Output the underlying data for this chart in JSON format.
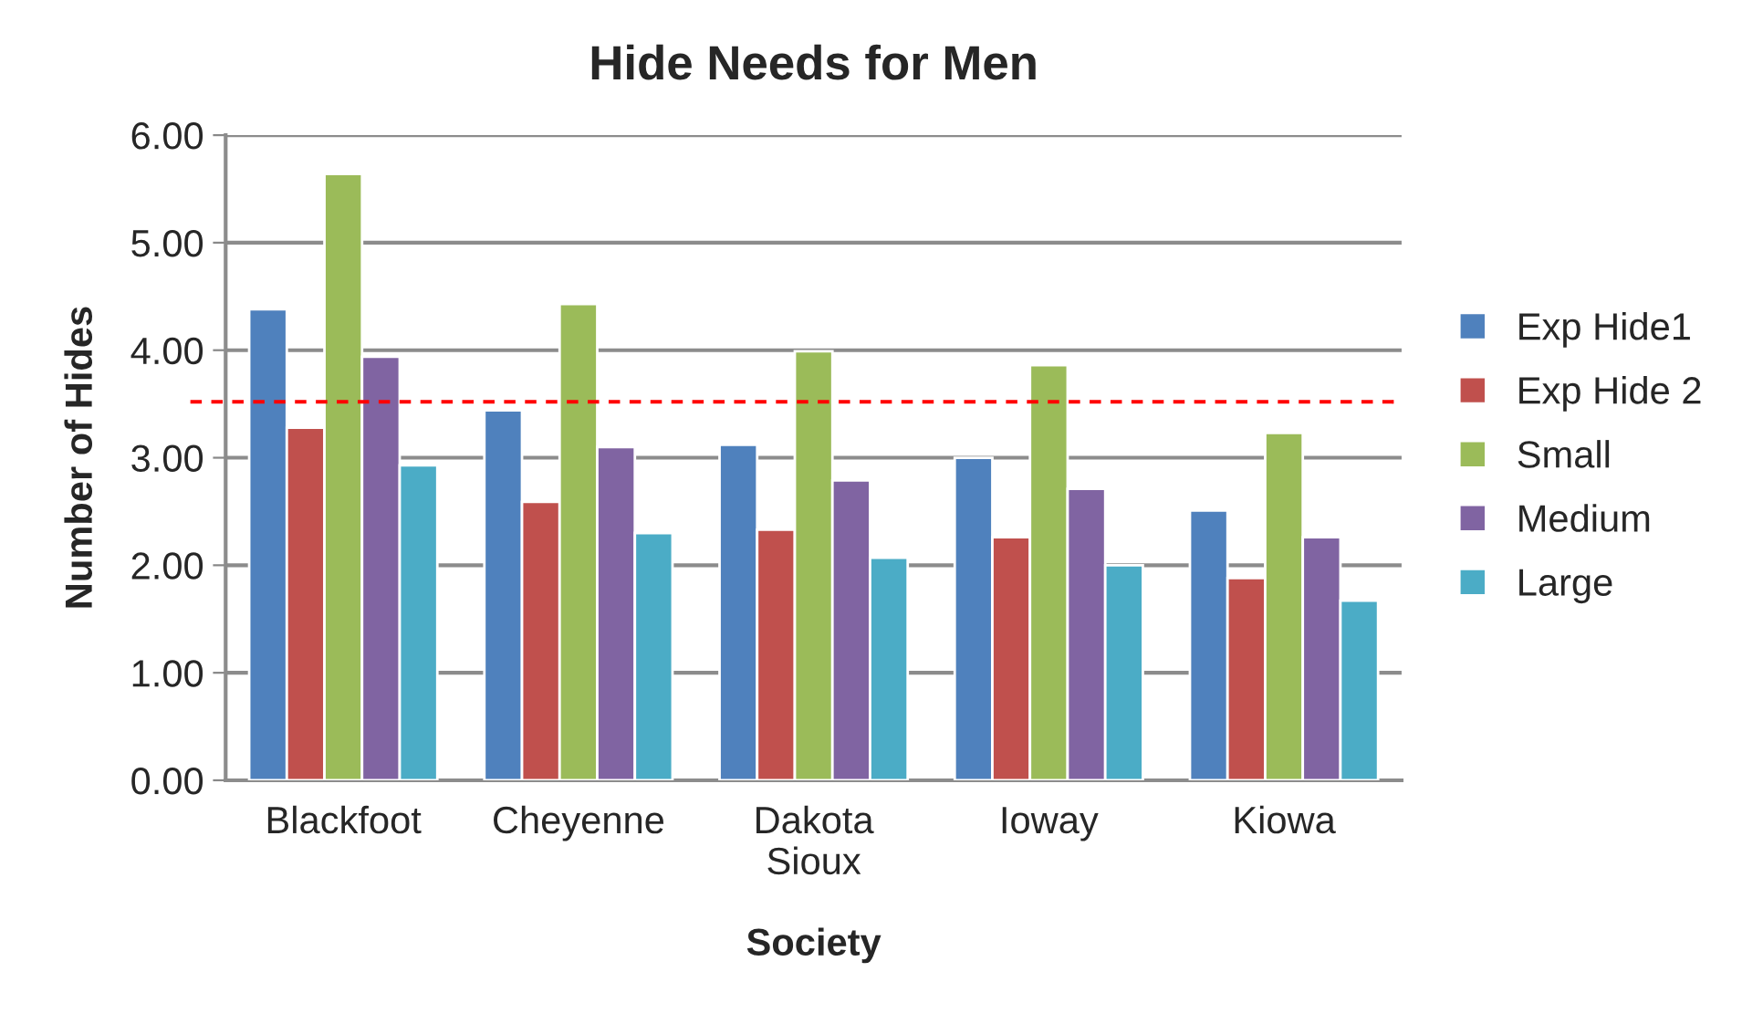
{
  "chart_data": {
    "type": "bar",
    "title": "Hide Needs for Men",
    "xlabel": "Society",
    "ylabel": "Number of Hides",
    "categories": [
      "Blackfoot",
      "Cheyenne",
      "Dakota Sioux",
      "Ioway",
      "Kiowa"
    ],
    "series": [
      {
        "name": "Exp Hide1",
        "color": "#4f81bd",
        "values": [
          4.38,
          3.44,
          3.12,
          3.0,
          2.51
        ]
      },
      {
        "name": "Exp Hide 2",
        "color": "#c0504d",
        "values": [
          3.28,
          2.59,
          2.33,
          2.26,
          1.88
        ]
      },
      {
        "name": "Small",
        "color": "#9bbb59",
        "values": [
          5.64,
          4.43,
          3.99,
          3.86,
          3.23
        ]
      },
      {
        "name": "Medium",
        "color": "#8064a2",
        "values": [
          3.94,
          3.1,
          2.79,
          2.71,
          2.26
        ]
      },
      {
        "name": "Large",
        "color": "#4bacc6",
        "values": [
          2.93,
          2.3,
          2.07,
          2.0,
          1.67
        ]
      }
    ],
    "ylim": [
      0,
      6
    ],
    "yticks": [
      {
        "value": 0,
        "label": "0.00"
      },
      {
        "value": 1,
        "label": "1.00"
      },
      {
        "value": 2,
        "label": "2.00"
      },
      {
        "value": 3,
        "label": "3.00"
      },
      {
        "value": 4,
        "label": "4.00"
      },
      {
        "value": 5,
        "label": "5.00"
      },
      {
        "value": 6,
        "label": "6.00"
      }
    ],
    "ref_lines": [
      {
        "axis": "y",
        "value": 3.52,
        "color": "#ff0000",
        "line_style": "dashed"
      }
    ],
    "grid": "y",
    "legend": "right"
  }
}
